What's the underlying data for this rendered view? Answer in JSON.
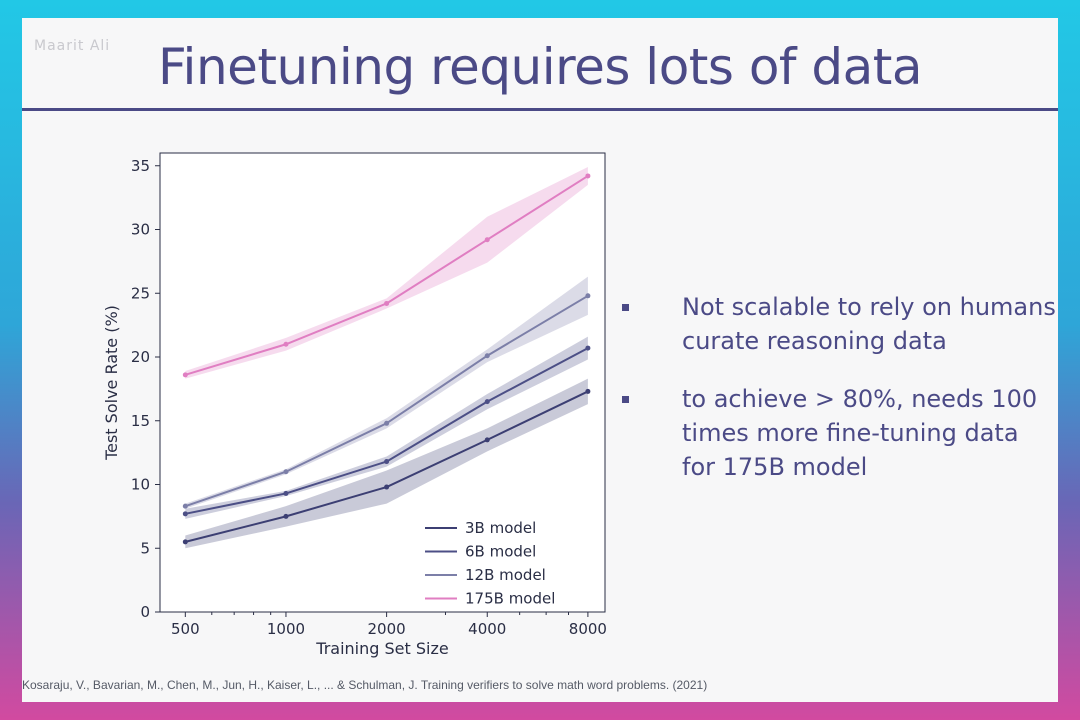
{
  "slide": {
    "watermark": "Maarit Ali",
    "title": "Finetuning requires lots of data",
    "bullets": [
      "Not scalable to rely on humans curate reasoning data",
      "to achieve > 80%, needs 100 times more fine-tuning data for 175B model"
    ],
    "citation": "Kosaraju, V., Bavarian, M., Chen, M., Jun, H., Kaiser, L., ... & Schulman, J. Training verifiers to solve math word problems. (2021)"
  },
  "chart_data": {
    "type": "line",
    "xscale": "log",
    "xlabel": "Training Set Size",
    "ylabel": "Test Solve Rate (%)",
    "x": [
      500,
      1000,
      2000,
      4000,
      8000
    ],
    "x_tick_labels": [
      "500",
      "1000",
      "2000",
      "4000",
      "8000"
    ],
    "ylim": [
      0,
      36
    ],
    "y_ticks": [
      0,
      5,
      10,
      15,
      20,
      25,
      30,
      35
    ],
    "legend_position": "lower-right",
    "series": [
      {
        "name": "3B model",
        "values": [
          5.5,
          7.5,
          9.8,
          13.5,
          17.3
        ],
        "band": [
          0.5,
          0.8,
          1.3,
          0.9,
          1.0
        ],
        "color": "#3c3f73"
      },
      {
        "name": "6B model",
        "values": [
          7.7,
          9.3,
          11.8,
          16.5,
          20.7
        ],
        "band": [
          0.4,
          0.2,
          0.4,
          0.6,
          0.9
        ],
        "color": "#4c4f86"
      },
      {
        "name": "12B model",
        "values": [
          8.3,
          11.0,
          14.8,
          20.1,
          24.8
        ],
        "band": [
          0.2,
          0.2,
          0.4,
          0.5,
          1.5
        ],
        "color": "#7c7fa8"
      },
      {
        "name": "175B model",
        "values": [
          18.6,
          21.0,
          24.2,
          29.2,
          34.2
        ],
        "band": [
          0.3,
          0.5,
          0.4,
          1.8,
          0.7
        ],
        "color": "#e07ec2"
      }
    ]
  }
}
